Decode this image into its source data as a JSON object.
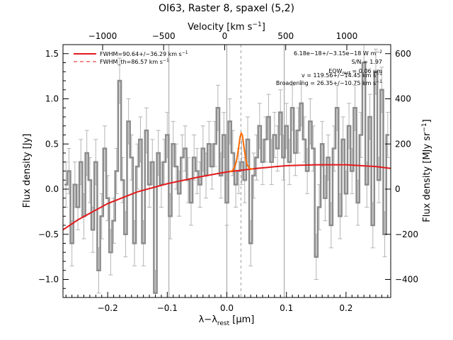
{
  "chart_data": {
    "type": "line",
    "title": "OI63, Raster 8, spaxel (5,2)",
    "xlabel": "λ−λ",
    "xlabel_sub": "rest",
    "xlabel_unit": " [μm]",
    "ylabel": "Flux density [Jy]",
    "top_axis_label": "Velocity [km s",
    "top_axis_label_sup": "−1",
    "top_axis_label_end": "]",
    "right_axis_label": "Flux density [MJy sr",
    "right_axis_label_sup": "−1",
    "right_axis_label_end": "]",
    "xlim": [
      -0.275,
      0.275
    ],
    "ylim": [
      -1.2,
      1.6
    ],
    "x_ticks": [
      -0.2,
      -0.1,
      0.0,
      0.1,
      0.2
    ],
    "x_tick_labels": [
      "−0.2",
      "−0.1",
      "0.0",
      "0.1",
      "0.2"
    ],
    "y_ticks": [
      -1.0,
      -0.5,
      0.0,
      0.5,
      1.0,
      1.5
    ],
    "y_tick_labels": [
      "−1.0",
      "−0.5",
      "0.0",
      "0.5",
      "1.0",
      "1.5"
    ],
    "top_ticks": [
      -1000,
      -500,
      0,
      500,
      1000
    ],
    "top_tick_labels": [
      "−1000",
      "−500",
      "0",
      "500",
      "1000"
    ],
    "top_tick_x_um": [
      -0.2085,
      -0.1061,
      -0.0036,
      0.0988,
      0.2013
    ],
    "right_ticks": [
      -400,
      -200,
      0,
      200,
      400,
      600
    ],
    "right_tick_labels": [
      "−400",
      "−200",
      "0",
      "200",
      "400",
      "600"
    ],
    "right_tick_y_jy": [
      -1.0,
      -0.5,
      0.0,
      0.5,
      1.0,
      1.5
    ],
    "vertical_lines_um": [
      -0.0972,
      0.0,
      0.0962
    ],
    "center_line_um": 0.0236,
    "legend": {
      "fit_label": "FWHM=90.64+/−36.29 km s",
      "fit_label_sup": "−1",
      "th_label": "FWHM_th=86.57 km s",
      "th_label_sup": "−1",
      "position": "top-left"
    },
    "annotations": [
      {
        "text": "6.18e−18+/−3.15e−18 W m",
        "sup": "−2"
      },
      {
        "text": "S/N = 1.97",
        "sup": ""
      },
      {
        "text": "EQW",
        "sub": "rest",
        "tail": " = 0.06 μm"
      },
      {
        "text": "v = 119.56+/−14.45 km s",
        "sup": "−1"
      },
      {
        "text": "Broadening = 26.35+/−10.75 km s",
        "sup": "−1"
      }
    ],
    "colors": {
      "spectrum": "#8c8c8c",
      "errorbar": "#b4b4b4",
      "fit": "#e31a1c",
      "line_fit": "#ff6a00",
      "guide": "#9e9e9e"
    },
    "spectrum": {
      "x_um": [
        -0.27,
        -0.265,
        -0.26,
        -0.255,
        -0.25,
        -0.245,
        -0.24,
        -0.235,
        -0.23,
        -0.225,
        -0.22,
        -0.215,
        -0.21,
        -0.205,
        -0.2,
        -0.195,
        -0.19,
        -0.185,
        -0.18,
        -0.175,
        -0.17,
        -0.165,
        -0.16,
        -0.155,
        -0.15,
        -0.145,
        -0.14,
        -0.135,
        -0.13,
        -0.125,
        -0.12,
        -0.115,
        -0.11,
        -0.105,
        -0.1,
        -0.095,
        -0.09,
        -0.085,
        -0.08,
        -0.075,
        -0.07,
        -0.065,
        -0.06,
        -0.055,
        -0.05,
        -0.045,
        -0.04,
        -0.035,
        -0.03,
        -0.025,
        -0.02,
        -0.015,
        -0.01,
        -0.005,
        0.0,
        0.005,
        0.01,
        0.015,
        0.02,
        0.025,
        0.03,
        0.035,
        0.04,
        0.045,
        0.05,
        0.055,
        0.06,
        0.065,
        0.07,
        0.075,
        0.08,
        0.085,
        0.09,
        0.095,
        0.1,
        0.105,
        0.11,
        0.115,
        0.12,
        0.125,
        0.13,
        0.135,
        0.14,
        0.145,
        0.15,
        0.155,
        0.16,
        0.165,
        0.17,
        0.175,
        0.18,
        0.185,
        0.19,
        0.195,
        0.2,
        0.205,
        0.21,
        0.215,
        0.22,
        0.225,
        0.23,
        0.235,
        0.24,
        0.245,
        0.25,
        0.255,
        0.26,
        0.265,
        0.27
      ],
      "flux_jy": [
        0.05,
        0.2,
        -0.6,
        0.05,
        -0.2,
        0.3,
        -0.3,
        0.4,
        0.1,
        -0.45,
        0.3,
        -0.9,
        -0.3,
        0.45,
        -0.1,
        -0.7,
        -0.35,
        0.2,
        1.2,
        0.1,
        -0.5,
        0.75,
        0.35,
        -0.6,
        0.25,
        0.55,
        -0.6,
        0.65,
        0.05,
        0.3,
        -1.15,
        0.4,
        0.05,
        0.3,
        0.6,
        -0.3,
        0.5,
        0.25,
        -0.05,
        0.35,
        0.45,
        0.1,
        -0.15,
        0.35,
        0.2,
        0.05,
        0.45,
        0.15,
        0.5,
        0.25,
        0.5,
        0.9,
        0.15,
        0.6,
        -0.15,
        0.75,
        0.4,
        0.05,
        0.2,
        0.3,
        0.1,
        0.55,
        -0.6,
        0.15,
        0.35,
        0.7,
        0.3,
        0.55,
        0.8,
        0.3,
        0.6,
        0.45,
        0.85,
        0.35,
        0.7,
        0.3,
        0.9,
        0.4,
        0.65,
        0.95,
        0.55,
        0.2,
        0.75,
        0.45,
        -0.75,
        -0.2,
        0.5,
        -0.1,
        0.35,
        -0.4,
        0.45,
        0.9,
        -0.3,
        0.55,
        -0.05,
        0.7,
        0.2,
        0.9,
        -0.15,
        0.6,
        1.4,
        0.05,
        0.8,
        -0.4,
        1.3,
        0.1,
        1.1,
        -0.5,
        0.6
      ],
      "error_jy": [
        0.25,
        0.25,
        0.25,
        0.25,
        0.25,
        0.25,
        0.25,
        0.25,
        0.25,
        0.25,
        0.25,
        0.25,
        0.25,
        0.25,
        0.25,
        0.25,
        0.25,
        0.25,
        0.25,
        0.25,
        0.25,
        0.25,
        0.25,
        0.25,
        0.25,
        0.25,
        0.25,
        0.25,
        0.25,
        0.25,
        0.25,
        0.25,
        0.25,
        0.25,
        0.25,
        0.25,
        0.25,
        0.25,
        0.25,
        0.25,
        0.25,
        0.25,
        0.25,
        0.25,
        0.25,
        0.25,
        0.25,
        0.25,
        0.25,
        0.25,
        0.25,
        0.25,
        0.25,
        0.25,
        0.25,
        0.25,
        0.25,
        0.25,
        0.25,
        0.25,
        0.25,
        0.25,
        0.25,
        0.25,
        0.25,
        0.25,
        0.25,
        0.25,
        0.25,
        0.25,
        0.25,
        0.25,
        0.25,
        0.25,
        0.25,
        0.25,
        0.25,
        0.25,
        0.25,
        0.25,
        0.25,
        0.25,
        0.25,
        0.25,
        0.25,
        0.25,
        0.25,
        0.25,
        0.25,
        0.25,
        0.25,
        0.25,
        0.25,
        0.25,
        0.25,
        0.25,
        0.25,
        0.25,
        0.25,
        0.25,
        0.25,
        0.25,
        0.25,
        0.25,
        0.25,
        0.25,
        0.25,
        0.25,
        0.25
      ]
    },
    "fit": {
      "x_um": [
        -0.275,
        -0.25,
        -0.2,
        -0.15,
        -0.1,
        -0.05,
        0.0,
        0.05,
        0.1,
        0.15,
        0.2,
        0.25,
        0.275
      ],
      "flux_jy": [
        -0.45,
        -0.34,
        -0.16,
        -0.03,
        0.06,
        0.13,
        0.19,
        0.23,
        0.26,
        0.27,
        0.27,
        0.25,
        0.23
      ]
    },
    "line_fit": {
      "x_um": [
        0.005,
        0.01,
        0.014,
        0.017,
        0.02,
        0.022,
        0.024,
        0.026,
        0.028,
        0.031,
        0.034,
        0.038,
        0.044
      ],
      "flux_jy": [
        0.19,
        0.21,
        0.26,
        0.34,
        0.47,
        0.57,
        0.62,
        0.6,
        0.5,
        0.36,
        0.27,
        0.23,
        0.22
      ]
    }
  }
}
